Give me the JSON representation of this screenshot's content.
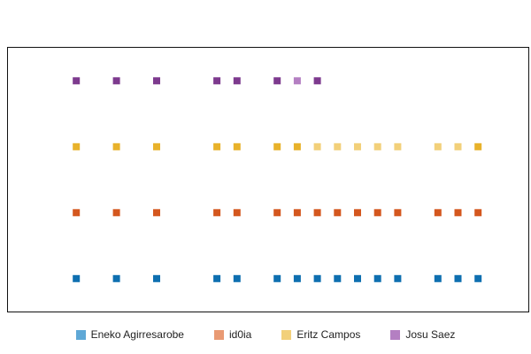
{
  "chart_data": {
    "type": "scatter",
    "marker": "square",
    "title": "",
    "xlabel": "",
    "ylabel": "",
    "grid": false,
    "legend_placement": "bottom-center",
    "x_ticks_shown": false,
    "y_ticks_shown": false,
    "series": [
      {
        "name": "Eneko Agirresarobe",
        "color": "#0e6fb0",
        "legend_color": "#5fa8d6",
        "row": 0,
        "x": [
          1,
          3,
          5,
          8,
          9,
          11,
          12,
          13,
          14,
          15,
          16,
          17,
          19,
          20,
          21
        ],
        "faded": []
      },
      {
        "name": "id0ia",
        "color": "#d4571e",
        "legend_color": "#e99a73",
        "row": 1,
        "x": [
          1,
          3,
          5,
          8,
          9,
          11,
          12,
          13,
          14,
          15,
          16,
          17,
          19,
          20,
          21
        ],
        "faded": []
      },
      {
        "name": "Eritz Campos",
        "color": "#e8b22b",
        "legend_color": "#f2d07a",
        "row": 2,
        "x": [
          1,
          3,
          5,
          8,
          9,
          11,
          12,
          13,
          14,
          15,
          16,
          17,
          19,
          20,
          21
        ],
        "faded": [
          13,
          14,
          15,
          16,
          17,
          19,
          20
        ]
      },
      {
        "name": "Josu Saez",
        "color": "#7d3a8e",
        "legend_color": "#b47fc2",
        "row": 3,
        "x": [
          1,
          3,
          5,
          8,
          9,
          11,
          12,
          13
        ],
        "faded": [
          12
        ]
      }
    ],
    "xlim": [
      -2.4,
      23.5
    ],
    "ylim": [
      -0.5,
      3.5
    ]
  }
}
